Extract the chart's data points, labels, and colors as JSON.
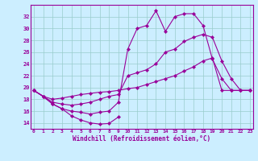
{
  "bg_color": "#cceeff",
  "line_color": "#990099",
  "grid_color": "#99cccc",
  "ylim": [
    13,
    34
  ],
  "xlim": [
    0,
    23
  ],
  "yticks": [
    14,
    16,
    18,
    20,
    22,
    24,
    26,
    28,
    30,
    32
  ],
  "xticks": [
    0,
    1,
    2,
    3,
    4,
    5,
    6,
    7,
    8,
    9,
    10,
    11,
    12,
    13,
    14,
    15,
    16,
    17,
    18,
    19,
    20,
    21,
    22,
    23
  ],
  "xlabel": "Windchill (Refroidissement éolien,°C)",
  "series": [
    {
      "x": [
        0,
        1,
        2,
        3,
        4,
        5,
        6,
        7,
        8,
        9
      ],
      "y": [
        19.5,
        18.5,
        17.2,
        16.4,
        15.2,
        14.5,
        14.0,
        13.8,
        13.9,
        15.0
      ]
    },
    {
      "x": [
        0,
        1,
        2,
        3,
        4,
        5,
        6,
        7,
        8,
        9,
        10,
        11,
        12,
        13,
        14,
        15,
        16,
        17,
        18,
        19,
        20,
        21,
        22,
        23
      ],
      "y": [
        19.5,
        18.5,
        18.0,
        18.2,
        18.5,
        18.8,
        19.0,
        19.2,
        19.3,
        19.5,
        19.8,
        20.0,
        20.5,
        21.0,
        21.5,
        22.0,
        22.8,
        23.5,
        24.5,
        25.0,
        19.5,
        19.5,
        19.5,
        19.5
      ]
    },
    {
      "x": [
        0,
        1,
        2,
        3,
        4,
        5,
        6,
        7,
        8,
        9,
        10,
        11,
        12,
        13,
        14,
        15,
        16,
        17,
        18,
        19,
        20,
        21,
        22,
        23
      ],
      "y": [
        19.5,
        18.5,
        17.5,
        17.2,
        17.0,
        17.2,
        17.5,
        18.0,
        18.5,
        18.8,
        22.0,
        22.5,
        23.0,
        24.0,
        26.0,
        26.5,
        27.8,
        28.5,
        29.0,
        28.5,
        24.5,
        21.5,
        19.5,
        19.5
      ]
    },
    {
      "x": [
        0,
        1,
        2,
        3,
        4,
        5,
        6,
        7,
        8,
        9,
        10,
        11,
        12,
        13,
        14,
        15,
        16,
        17,
        18,
        19,
        20,
        21,
        22,
        23
      ],
      "y": [
        19.5,
        18.5,
        17.2,
        16.4,
        16.0,
        15.8,
        15.5,
        15.8,
        16.0,
        17.5,
        26.5,
        30.0,
        30.5,
        33.0,
        29.5,
        32.0,
        32.5,
        32.5,
        30.5,
        24.8,
        21.5,
        19.5,
        19.5,
        19.5
      ]
    }
  ]
}
